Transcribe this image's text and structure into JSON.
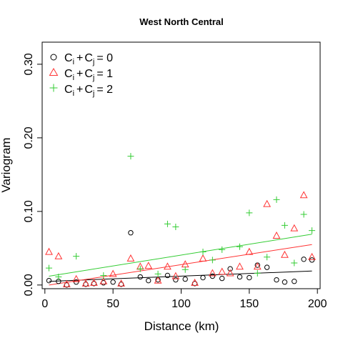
{
  "chart_data": {
    "type": "scatter",
    "title": "West North Central",
    "xlabel": "Distance (km)",
    "ylabel": "Variogram",
    "xlim": [
      -2,
      202
    ],
    "ylim": [
      -0.005,
      0.33
    ],
    "x_ticks": [
      {
        "value": 0,
        "label": "0"
      },
      {
        "value": 50,
        "label": "50"
      },
      {
        "value": 100,
        "label": "100"
      },
      {
        "value": 150,
        "label": "150"
      },
      {
        "value": 200,
        "label": "200"
      }
    ],
    "y_ticks": [
      {
        "value": 0.0,
        "label": "0.00"
      },
      {
        "value": 0.1,
        "label": "0.10"
      },
      {
        "value": 0.2,
        "label": "0.20"
      },
      {
        "value": 0.3,
        "label": "0.30"
      }
    ],
    "legend_position": "top-left",
    "series": [
      {
        "label_parts": {
          "c1": "C",
          "s1": "i",
          "plus": "+",
          "c2": "C",
          "s2": "j",
          "rhs": "= 0"
        },
        "marker": "circle",
        "color": "#000000",
        "x": [
          3,
          10,
          16,
          23,
          30,
          36,
          43,
          50,
          56,
          63,
          70,
          76,
          83,
          90,
          96,
          103,
          110,
          116,
          123,
          130,
          136,
          143,
          150,
          156,
          163,
          170,
          176,
          183,
          190,
          196
        ],
        "y": [
          0.006,
          0.005,
          0.0,
          0.004,
          0.001,
          0.002,
          0.003,
          0.004,
          0.001,
          0.071,
          0.011,
          0.006,
          0.007,
          0.013,
          0.007,
          0.008,
          0.002,
          0.01,
          0.012,
          0.009,
          0.022,
          0.011,
          0.01,
          0.027,
          0.024,
          0.007,
          0.004,
          0.005,
          0.035,
          0.034
        ],
        "fit": [
          0.005,
          0.019
        ]
      },
      {
        "label_parts": {
          "c1": "C",
          "s1": "i",
          "plus": "+",
          "c2": "C",
          "s2": "j",
          "rhs": "= 1"
        },
        "marker": "triangle",
        "color": "#ff3333",
        "x": [
          3,
          10,
          16,
          23,
          30,
          36,
          43,
          50,
          56,
          63,
          70,
          76,
          83,
          90,
          96,
          103,
          110,
          116,
          123,
          130,
          136,
          143,
          150,
          156,
          163,
          170,
          176,
          183,
          190,
          196
        ],
        "y": [
          0.045,
          0.039,
          0.001,
          0.008,
          0.002,
          0.003,
          0.005,
          0.015,
          0.002,
          0.036,
          0.025,
          0.026,
          0.006,
          0.025,
          0.012,
          0.028,
          0.003,
          0.036,
          0.016,
          0.018,
          0.016,
          0.025,
          0.045,
          0.025,
          0.11,
          0.067,
          0.041,
          0.077,
          0.122,
          0.038
        ],
        "fit": [
          0.0,
          0.055
        ]
      },
      {
        "label_parts": {
          "c1": "C",
          "s1": "i",
          "plus": "+",
          "c2": "C",
          "s2": "j",
          "rhs": "= 2"
        },
        "marker": "plus",
        "color": "#33cc33",
        "x": [
          3,
          10,
          23,
          43,
          63,
          70,
          83,
          90,
          96,
          103,
          116,
          123,
          130,
          143,
          150,
          156,
          163,
          170,
          176,
          183,
          190,
          196
        ],
        "y": [
          0.023,
          0.011,
          0.039,
          0.013,
          0.175,
          0.022,
          0.015,
          0.083,
          0.079,
          0.021,
          0.045,
          0.034,
          0.048,
          0.052,
          0.098,
          0.016,
          0.038,
          0.116,
          0.081,
          0.03,
          0.096,
          0.074
        ],
        "fit": [
          0.012,
          0.069
        ]
      }
    ]
  }
}
